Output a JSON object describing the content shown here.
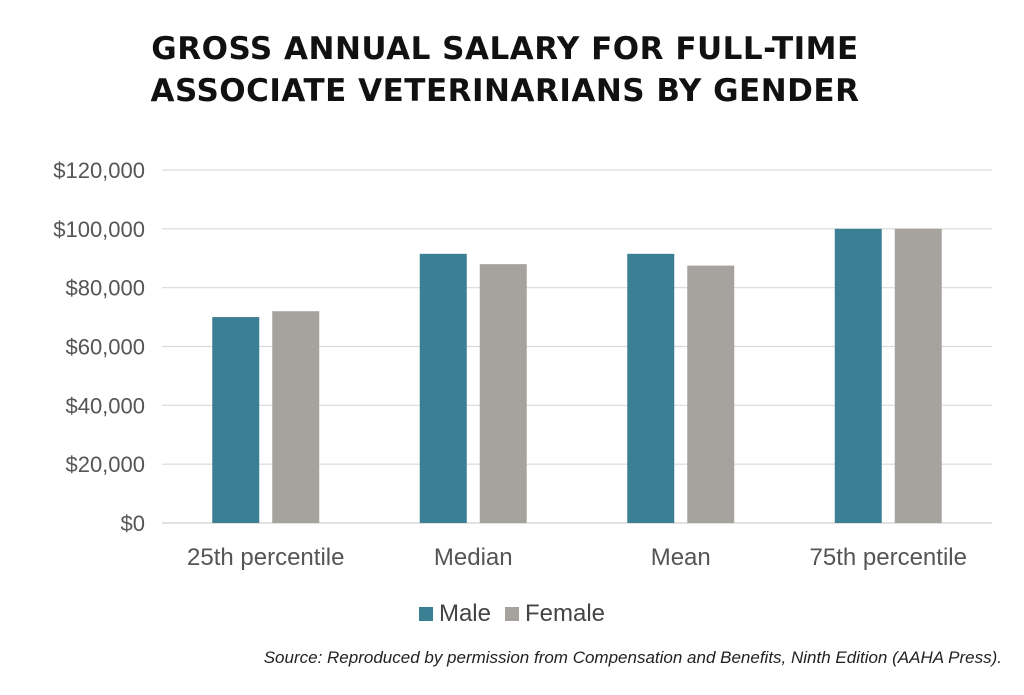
{
  "chart_data": {
    "type": "bar",
    "title": "GROSS ANNUAL SALARY FOR FULL-TIME ASSOCIATE VETERINARIANS BY GENDER",
    "title_lines": [
      "GROSS ANNUAL SALARY FOR FULL-TIME",
      "ASSOCIATE VETERINARIANS BY GENDER"
    ],
    "categories": [
      "25th percentile",
      "Median",
      "Mean",
      "75th percentile"
    ],
    "series": [
      {
        "name": "Male",
        "values": [
          70000,
          91500,
          91500,
          100000
        ],
        "color": "#3b7f95"
      },
      {
        "name": "Female",
        "values": [
          72000,
          88000,
          87500,
          100000
        ],
        "color": "#a6a39f"
      }
    ],
    "ylim": [
      0,
      120000
    ],
    "yticks": [
      0,
      20000,
      40000,
      60000,
      80000,
      100000,
      120000
    ],
    "ytick_labels": [
      "$0",
      "$20,000",
      "$40,000",
      "$60,000",
      "$80,000",
      "$100,000",
      "$120,000"
    ],
    "xlabel": "",
    "ylabel": "",
    "grid": true,
    "legend_position": "bottom",
    "gridline_color": "#d9d9d9",
    "axis_text_color": "#555555"
  },
  "source_note": "Source: Reproduced by permission from Compensation and Benefits, Ninth Edition (AAHA Press)."
}
